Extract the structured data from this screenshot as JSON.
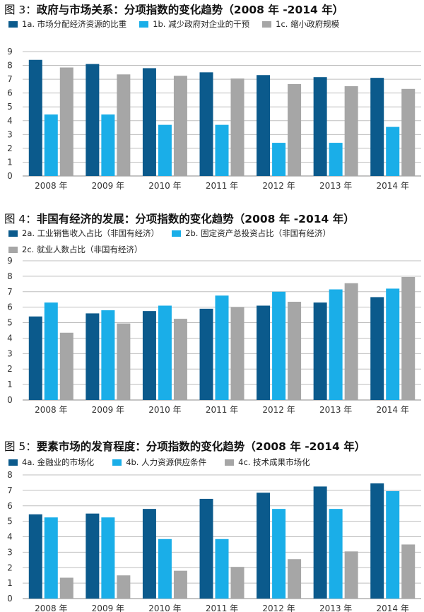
{
  "charts": [
    {
      "prefix": "图 3：",
      "title": "政府与市场关系：分项指数的变化趋势（2008 年 -2014 年）"
    },
    {
      "prefix": "图 4：",
      "title": "非国有经济的发展：分项指数的变化趋势（2008 年 -2014 年）"
    },
    {
      "prefix": "图 5：",
      "title": "要素市场的发育程度：分项指数的变化趋势（2008 年 -2014 年）"
    }
  ],
  "colors": {
    "dark_blue": "#0b5a8c",
    "light_blue": "#1aaee8",
    "gray": "#a6a6a6",
    "grid": "#bfbfbf"
  },
  "chart_data": [
    {
      "type": "bar",
      "title": "政府与市场关系：分项指数的变化趋势（2008 年 -2014 年）",
      "categories": [
        "2008 年",
        "2009 年",
        "2010 年",
        "2011 年",
        "2012 年",
        "2013 年",
        "2014 年"
      ],
      "series": [
        {
          "name": "1a. 市场分配经济资源的比重",
          "color": "#0b5a8c",
          "values": [
            8.4,
            8.1,
            7.8,
            7.5,
            7.3,
            7.15,
            7.1
          ]
        },
        {
          "name": "1b. 减少政府对企业的干预",
          "color": "#1aaee8",
          "values": [
            4.45,
            4.45,
            3.7,
            3.7,
            2.4,
            2.4,
            3.55
          ]
        },
        {
          "name": "1c. 缩小政府规模",
          "color": "#a6a6a6",
          "values": [
            7.85,
            7.35,
            7.25,
            7.05,
            6.65,
            6.5,
            6.3
          ]
        }
      ],
      "ylim": [
        0,
        9
      ],
      "yticks": [
        "0",
        "1",
        "2",
        "3",
        "4",
        "5",
        "6",
        "7",
        "8",
        "9"
      ],
      "grid": true,
      "legend_position": "top"
    },
    {
      "type": "bar",
      "title": "非国有经济的发展：分项指数的变化趋势（2008 年 -2014 年）",
      "categories": [
        "2008 年",
        "2009 年",
        "2010 年",
        "2011 年",
        "2012 年",
        "2013 年",
        "2014 年"
      ],
      "series": [
        {
          "name": "2a. 工业销售收入占比（非国有经济）",
          "color": "#0b5a8c",
          "values": [
            5.4,
            5.6,
            5.75,
            5.9,
            6.1,
            6.3,
            6.65
          ]
        },
        {
          "name": "2b. 固定资产总投资占比（非国有经济）",
          "color": "#1aaee8",
          "values": [
            6.3,
            5.8,
            6.1,
            6.75,
            7.0,
            7.15,
            7.2
          ]
        },
        {
          "name": "2c. 就业人数占比（非国有经济）",
          "color": "#a6a6a6",
          "values": [
            4.35,
            4.95,
            5.25,
            6.0,
            6.35,
            7.55,
            7.95
          ]
        }
      ],
      "ylim": [
        0,
        9
      ],
      "yticks": [
        "0",
        "1",
        "2",
        "3",
        "4",
        "5",
        "6",
        "7",
        "8",
        "9"
      ],
      "grid": true,
      "legend_position": "top"
    },
    {
      "type": "bar",
      "title": "要素市场的发育程度：分项指数的变化趋势（2008 年 -2014 年）",
      "categories": [
        "2008 年",
        "2009 年",
        "2010 年",
        "2011 年",
        "2012 年",
        "2013 年",
        "2014 年"
      ],
      "series": [
        {
          "name": "4a. 金融业的市场化",
          "color": "#0b5a8c",
          "values": [
            5.45,
            5.5,
            5.8,
            6.45,
            6.85,
            7.25,
            7.45
          ]
        },
        {
          "name": "4b. 人力资源供应条件",
          "color": "#1aaee8",
          "values": [
            5.25,
            5.25,
            3.85,
            3.85,
            5.8,
            5.8,
            6.95
          ]
        },
        {
          "name": "4c. 技术成果市场化",
          "color": "#a6a6a6",
          "values": [
            1.35,
            1.5,
            1.8,
            2.05,
            2.55,
            3.05,
            3.5
          ]
        }
      ],
      "ylim": [
        0,
        8
      ],
      "yticks": [
        "0",
        "1",
        "2",
        "3",
        "4",
        "5",
        "6",
        "7",
        "8"
      ],
      "grid": true,
      "legend_position": "top"
    }
  ]
}
